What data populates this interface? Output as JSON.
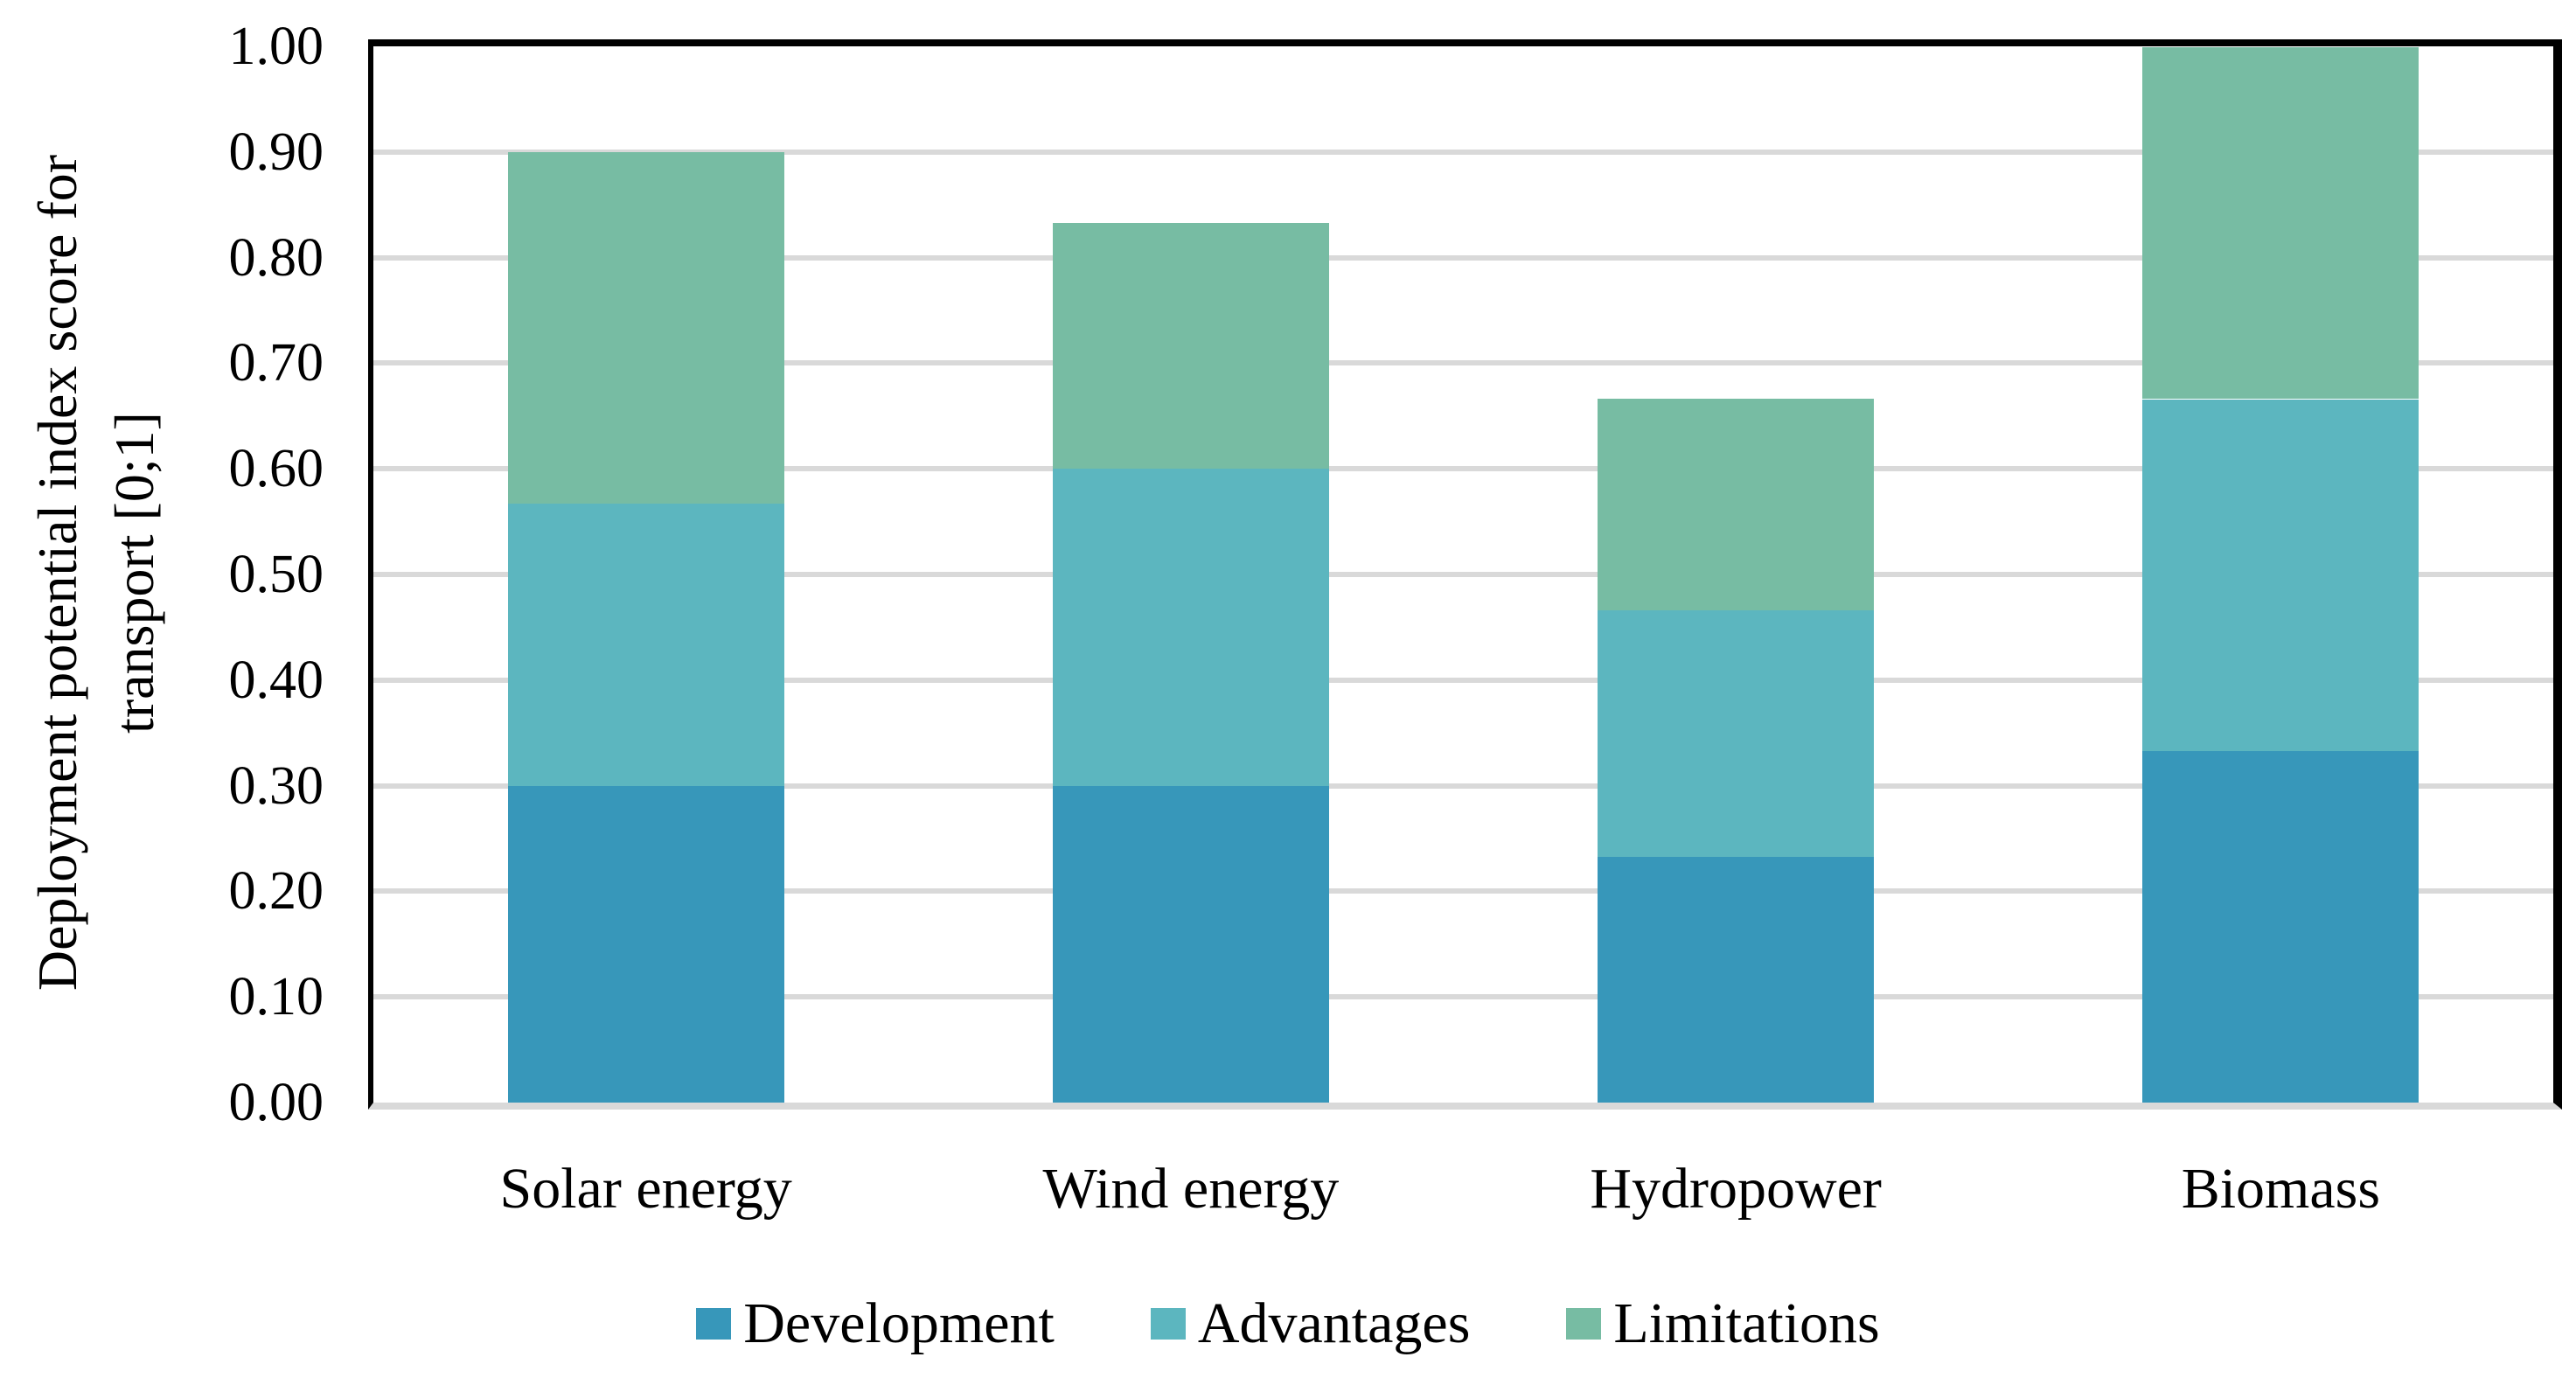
{
  "chart_data": {
    "type": "bar",
    "stacked": true,
    "categories": [
      "Solar energy",
      "Wind energy",
      "Hydropower",
      "Biomass"
    ],
    "series": [
      {
        "name": "Development",
        "color": "#3797BA",
        "values": [
          0.3,
          0.3,
          0.233,
          0.333
        ]
      },
      {
        "name": "Advantages",
        "color": "#5CB6BF",
        "values": [
          0.267,
          0.3,
          0.233,
          0.333
        ]
      },
      {
        "name": "Limitations",
        "color": "#77BCA3",
        "values": [
          0.333,
          0.233,
          0.2,
          0.333
        ]
      }
    ],
    "ylabel_line1": "Deployment potential index score for",
    "ylabel_line2": "transport [0;1]",
    "ylim": [
      0,
      1
    ],
    "yticks": [
      "0.00",
      "0.10",
      "0.20",
      "0.30",
      "0.40",
      "0.50",
      "0.60",
      "0.70",
      "0.80",
      "0.90",
      "1.00"
    ],
    "grid": true,
    "gridline_color": "#D9D9D9",
    "axis_color": "#000000",
    "background": "#FFFFFF",
    "legend_position": "bottom"
  },
  "legend": {
    "items": [
      {
        "label": "Development",
        "color": "#3797BA"
      },
      {
        "label": "Advantages",
        "color": "#5CB6BF"
      },
      {
        "label": "Limitations",
        "color": "#77BCA3"
      }
    ]
  }
}
